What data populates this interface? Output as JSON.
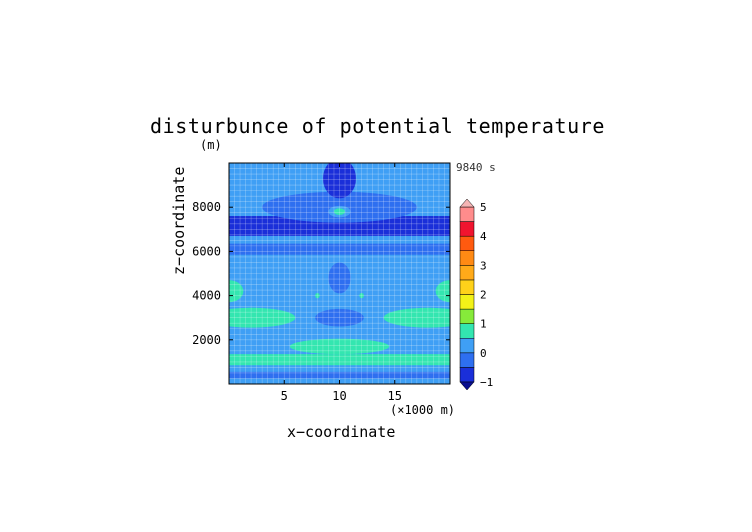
{
  "chart_data": {
    "type": "heatmap",
    "title": "disturbunce of potential temperature",
    "xlabel": "x−coordinate",
    "ylabel": "z−coordinate",
    "x_unit": "(×1000 m)",
    "y_unit": "(m)",
    "time_label": "9840 s",
    "xlim": [
      0,
      20
    ],
    "ylim": [
      0,
      10000
    ],
    "x_ticks": [
      5,
      10,
      15
    ],
    "y_ticks": [
      2000,
      4000,
      6000,
      8000
    ],
    "colorbar": {
      "levels": [
        -1,
        -0.5,
        0,
        0.5,
        1,
        1.5,
        2,
        2.5,
        3,
        3.5,
        4,
        4.5,
        5
      ],
      "tick_labels": [
        "−1",
        "0",
        "1",
        "2",
        "3",
        "4",
        "5"
      ],
      "tick_values": [
        -1,
        0,
        1,
        2,
        3,
        4,
        5
      ],
      "colors": [
        "#1a2fd9",
        "#2e6ff0",
        "#3f9ff5",
        "#33e6b0",
        "#86ea3a",
        "#f2f218",
        "#ffd21a",
        "#ffaa19",
        "#ff8a14",
        "#ff5a0f",
        "#f0142f",
        "#ff8c8c",
        "#f5b5b5"
      ]
    },
    "grid": true,
    "value_range_estimate": [
      -1,
      1
    ]
  }
}
